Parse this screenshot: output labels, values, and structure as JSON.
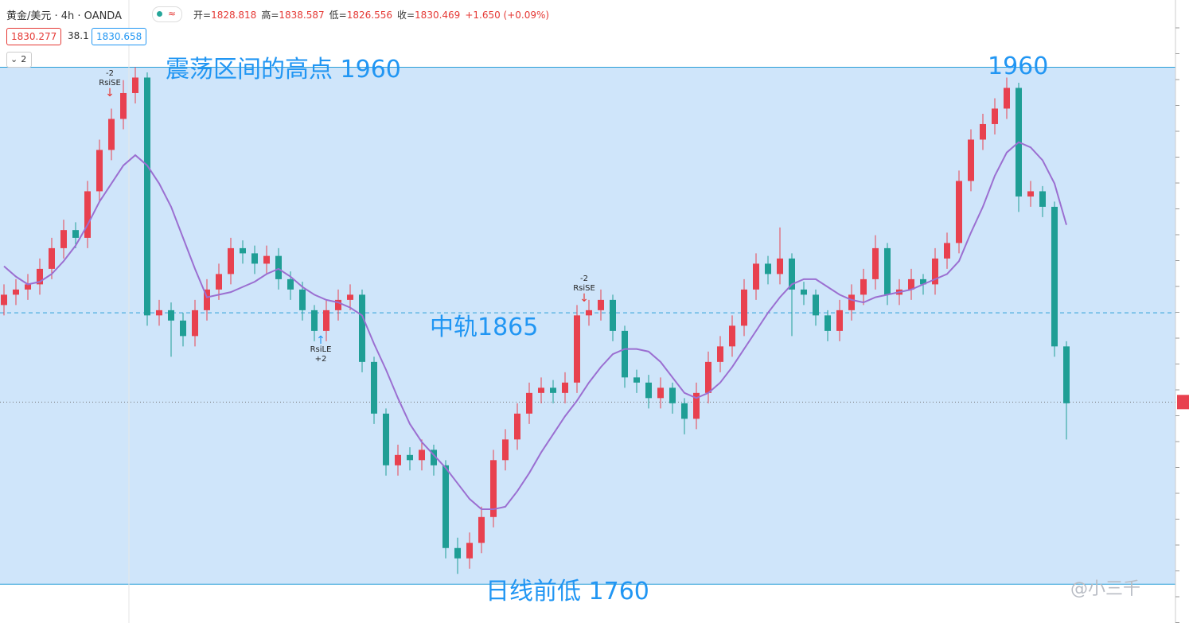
{
  "header": {
    "symbol": "黄金/美元 · 4h · OANDA",
    "ohlc": [
      {
        "label": "开=",
        "value": "1828.818"
      },
      {
        "label": "高=",
        "value": "1838.587"
      },
      {
        "label": "低=",
        "value": "1826.556"
      },
      {
        "label": "收=",
        "value": "1830.469"
      }
    ],
    "change": "+1.650 (+0.09%)",
    "bid": "1830.277",
    "spread": "38.1",
    "ask": "1830.658",
    "indicator_count": "2"
  },
  "chart_data": {
    "type": "candlestick",
    "ylim": [
      1745,
      1986
    ],
    "up_color": "#e8414f",
    "down_color": "#1f9e95",
    "band_color": "#cfe5fa",
    "open": [
      1868,
      1872,
      1874,
      1876,
      1882,
      1890,
      1897,
      1894,
      1912,
      1928,
      1940,
      1950,
      1956,
      1864,
      1866,
      1862,
      1856,
      1866,
      1874,
      1880,
      1890,
      1888,
      1884,
      1887,
      1878,
      1874,
      1866,
      1858,
      1866,
      1870,
      1872,
      1846,
      1826,
      1806,
      1810,
      1808,
      1812,
      1806,
      1774,
      1770,
      1776,
      1786,
      1808,
      1816,
      1826,
      1834,
      1836,
      1834,
      1838,
      1864,
      1866,
      1870,
      1858,
      1840,
      1838,
      1832,
      1836,
      1830,
      1824,
      1834,
      1846,
      1852,
      1860,
      1874,
      1884,
      1880,
      1886,
      1874,
      1872,
      1864,
      1858,
      1866,
      1872,
      1878,
      1890,
      1872,
      1874,
      1878,
      1876,
      1886,
      1892,
      1916,
      1932,
      1938,
      1944,
      1952,
      1910,
      1912,
      1906,
      1852
    ],
    "high": [
      1876,
      1878,
      1880,
      1886,
      1894,
      1901,
      1900,
      1916,
      1932,
      1944,
      1955,
      1960,
      1958,
      1870,
      1869,
      1865,
      1870,
      1878,
      1884,
      1894,
      1893,
      1891,
      1891,
      1890,
      1881,
      1877,
      1868,
      1870,
      1874,
      1876,
      1874,
      1848,
      1828,
      1814,
      1813,
      1816,
      1814,
      1808,
      1778,
      1780,
      1790,
      1812,
      1820,
      1830,
      1838,
      1840,
      1839,
      1842,
      1868,
      1870,
      1874,
      1872,
      1860,
      1843,
      1841,
      1840,
      1838,
      1832,
      1838,
      1850,
      1856,
      1864,
      1878,
      1888,
      1887,
      1898,
      1888,
      1877,
      1874,
      1866,
      1870,
      1876,
      1882,
      1895,
      1892,
      1878,
      1882,
      1880,
      1890,
      1896,
      1920,
      1936,
      1942,
      1948,
      1956,
      1954,
      1916,
      1914,
      1908,
      1854
    ],
    "low": [
      1864,
      1868,
      1870,
      1872,
      1878,
      1886,
      1890,
      1890,
      1908,
      1924,
      1936,
      1946,
      1860,
      1860,
      1848,
      1852,
      1852,
      1862,
      1870,
      1876,
      1884,
      1880,
      1880,
      1874,
      1870,
      1862,
      1854,
      1854,
      1862,
      1866,
      1842,
      1822,
      1802,
      1802,
      1804,
      1804,
      1802,
      1770,
      1764,
      1766,
      1772,
      1782,
      1804,
      1812,
      1822,
      1830,
      1830,
      1830,
      1834,
      1860,
      1862,
      1854,
      1836,
      1834,
      1828,
      1828,
      1826,
      1818,
      1820,
      1830,
      1842,
      1848,
      1856,
      1870,
      1876,
      1876,
      1856,
      1868,
      1860,
      1854,
      1854,
      1862,
      1868,
      1874,
      1868,
      1868,
      1870,
      1872,
      1872,
      1882,
      1888,
      1912,
      1928,
      1934,
      1940,
      1904,
      1906,
      1902,
      1848,
      1816
    ],
    "close": [
      1872,
      1874,
      1876,
      1882,
      1890,
      1897,
      1894,
      1912,
      1928,
      1940,
      1950,
      1956,
      1864,
      1866,
      1862,
      1856,
      1866,
      1874,
      1880,
      1890,
      1888,
      1884,
      1887,
      1878,
      1874,
      1866,
      1858,
      1866,
      1870,
      1872,
      1846,
      1826,
      1806,
      1810,
      1808,
      1812,
      1806,
      1774,
      1770,
      1776,
      1786,
      1808,
      1816,
      1826,
      1834,
      1836,
      1834,
      1838,
      1864,
      1866,
      1870,
      1858,
      1840,
      1838,
      1832,
      1836,
      1830,
      1824,
      1834,
      1846,
      1852,
      1860,
      1874,
      1884,
      1880,
      1886,
      1874,
      1872,
      1864,
      1858,
      1866,
      1872,
      1878,
      1890,
      1872,
      1874,
      1878,
      1876,
      1886,
      1892,
      1916,
      1932,
      1938,
      1944,
      1952,
      1910,
      1912,
      1906,
      1852,
      1830
    ],
    "ma": {
      "color": "#9b6fd1",
      "values": [
        1883,
        1879,
        1876,
        1877,
        1880,
        1885,
        1891,
        1899,
        1908,
        1915,
        1922,
        1926,
        1922,
        1915,
        1906,
        1894,
        1882,
        1871,
        1872,
        1873,
        1875,
        1877,
        1880,
        1882,
        1879,
        1875,
        1872,
        1870,
        1869,
        1867,
        1864,
        1853,
        1843,
        1832,
        1822,
        1815,
        1810,
        1805,
        1799,
        1793,
        1789,
        1789,
        1790,
        1796,
        1803,
        1811,
        1818,
        1825,
        1831,
        1838,
        1844,
        1849,
        1851,
        1851,
        1850,
        1846,
        1840,
        1834,
        1832,
        1834,
        1838,
        1844,
        1851,
        1858,
        1865,
        1871,
        1876,
        1878,
        1878,
        1875,
        1872,
        1870,
        1869,
        1871,
        1872,
        1873,
        1874,
        1876,
        1878,
        1880,
        1885,
        1896,
        1906,
        1918,
        1927,
        1931,
        1929,
        1924,
        1915,
        1899
      ]
    },
    "levels": [
      {
        "value": 1960,
        "style": "solid",
        "color": "#2a9fd8"
      },
      {
        "value": 1760,
        "style": "solid",
        "color": "#2a9fd8"
      },
      {
        "value": 1865,
        "style": "dashed",
        "color": "#2a9fd8"
      },
      {
        "value": 1830.469,
        "style": "dotted",
        "color": "#777777"
      }
    ],
    "annotations": [
      "震荡区间的高点 1960",
      "1960",
      "中轨1865",
      "日线前低 1760"
    ],
    "signals": [
      {
        "count": "-2",
        "name": "RsiSE"
      },
      {
        "count": "-2",
        "name": "RsiSE"
      },
      {
        "count": "+2",
        "name": "RsiLE"
      }
    ],
    "watermark": "@小三千"
  }
}
